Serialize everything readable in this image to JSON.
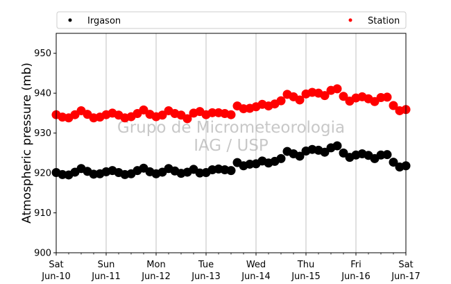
{
  "chart_data": {
    "type": "scatter",
    "ylabel": "Atmospheric pressure (mb)",
    "xlabel": "",
    "ylim": [
      900,
      955
    ],
    "yticks": [
      900,
      910,
      920,
      930,
      940,
      950
    ],
    "xlim": [
      "2017-06-10",
      "2017-06-17"
    ],
    "xticks": [
      {
        "date": "2017-06-10",
        "day": "Sat",
        "label": "Jun-10"
      },
      {
        "date": "2017-06-11",
        "day": "Sun",
        "label": "Jun-11"
      },
      {
        "date": "2017-06-12",
        "day": "Mon",
        "label": "Jun-12"
      },
      {
        "date": "2017-06-13",
        "day": "Tue",
        "label": "Jun-13"
      },
      {
        "date": "2017-06-14",
        "day": "Wed",
        "label": "Jun-14"
      },
      {
        "date": "2017-06-15",
        "day": "Thu",
        "label": "Jun-15"
      },
      {
        "date": "2017-06-16",
        "day": "Fri",
        "label": "Jun-16"
      },
      {
        "date": "2017-06-17",
        "day": "Sat",
        "label": "Jun-17"
      }
    ],
    "grid": "vertical",
    "legend": "top",
    "watermark": [
      "Grupo de Micrometeorologia",
      "IAG / USP"
    ],
    "series": [
      {
        "name": "Irgason",
        "color": "#000000",
        "points": [
          [
            "2017-06-10 00:00",
            920.1
          ],
          [
            "2017-06-10 03:00",
            919.6
          ],
          [
            "2017-06-10 06:00",
            919.5
          ],
          [
            "2017-06-10 09:00",
            920.2
          ],
          [
            "2017-06-10 12:00",
            921.1
          ],
          [
            "2017-06-10 15:00",
            920.4
          ],
          [
            "2017-06-10 18:00",
            919.7
          ],
          [
            "2017-06-10 21:00",
            919.8
          ],
          [
            "2017-06-11 00:00",
            920.3
          ],
          [
            "2017-06-11 03:00",
            920.6
          ],
          [
            "2017-06-11 06:00",
            920.1
          ],
          [
            "2017-06-11 09:00",
            919.6
          ],
          [
            "2017-06-11 12:00",
            919.8
          ],
          [
            "2017-06-11 15:00",
            920.6
          ],
          [
            "2017-06-11 18:00",
            921.2
          ],
          [
            "2017-06-11 21:00",
            920.3
          ],
          [
            "2017-06-12 00:00",
            919.8
          ],
          [
            "2017-06-12 03:00",
            920.2
          ],
          [
            "2017-06-12 06:00",
            921.1
          ],
          [
            "2017-06-12 09:00",
            920.5
          ],
          [
            "2017-06-12 12:00",
            919.9
          ],
          [
            "2017-06-12 15:00",
            920.2
          ],
          [
            "2017-06-12 18:00",
            920.9
          ],
          [
            "2017-06-12 21:00",
            920.0
          ],
          [
            "2017-06-13 00:00",
            920.1
          ],
          [
            "2017-06-13 03:00",
            920.8
          ],
          [
            "2017-06-13 06:00",
            921.0
          ],
          [
            "2017-06-13 09:00",
            920.8
          ],
          [
            "2017-06-13 12:00",
            920.6
          ],
          [
            "2017-06-13 15:00",
            922.6
          ],
          [
            "2017-06-13 18:00",
            921.8
          ],
          [
            "2017-06-13 21:00",
            922.2
          ],
          [
            "2017-06-14 00:00",
            922.3
          ],
          [
            "2017-06-14 03:00",
            923.0
          ],
          [
            "2017-06-14 06:00",
            922.5
          ],
          [
            "2017-06-14 09:00",
            922.9
          ],
          [
            "2017-06-14 12:00",
            923.6
          ],
          [
            "2017-06-14 15:00",
            925.4
          ],
          [
            "2017-06-14 18:00",
            924.8
          ],
          [
            "2017-06-14 21:00",
            924.2
          ],
          [
            "2017-06-15 00:00",
            925.5
          ],
          [
            "2017-06-15 03:00",
            925.9
          ],
          [
            "2017-06-15 06:00",
            925.7
          ],
          [
            "2017-06-15 09:00",
            925.2
          ],
          [
            "2017-06-15 12:00",
            926.3
          ],
          [
            "2017-06-15 15:00",
            926.8
          ],
          [
            "2017-06-15 18:00",
            925.0
          ],
          [
            "2017-06-15 21:00",
            923.9
          ],
          [
            "2017-06-16 00:00",
            924.5
          ],
          [
            "2017-06-16 03:00",
            924.8
          ],
          [
            "2017-06-16 06:00",
            924.4
          ],
          [
            "2017-06-16 09:00",
            923.6
          ],
          [
            "2017-06-16 12:00",
            924.5
          ],
          [
            "2017-06-16 15:00",
            924.6
          ],
          [
            "2017-06-16 18:00",
            922.7
          ],
          [
            "2017-06-16 21:00",
            921.5
          ],
          [
            "2017-06-17 00:00",
            921.8
          ]
        ]
      },
      {
        "name": "Station",
        "color": "#ff0000",
        "points": [
          [
            "2017-06-10 00:00",
            934.6
          ],
          [
            "2017-06-10 03:00",
            934.0
          ],
          [
            "2017-06-10 06:00",
            933.8
          ],
          [
            "2017-06-10 09:00",
            934.6
          ],
          [
            "2017-06-10 12:00",
            935.6
          ],
          [
            "2017-06-10 15:00",
            934.7
          ],
          [
            "2017-06-10 18:00",
            933.8
          ],
          [
            "2017-06-10 21:00",
            934.0
          ],
          [
            "2017-06-11 00:00",
            934.6
          ],
          [
            "2017-06-11 03:00",
            935.0
          ],
          [
            "2017-06-11 06:00",
            934.5
          ],
          [
            "2017-06-11 09:00",
            933.8
          ],
          [
            "2017-06-11 12:00",
            934.1
          ],
          [
            "2017-06-11 15:00",
            934.9
          ],
          [
            "2017-06-11 18:00",
            935.8
          ],
          [
            "2017-06-11 21:00",
            934.7
          ],
          [
            "2017-06-12 00:00",
            934.1
          ],
          [
            "2017-06-12 03:00",
            934.5
          ],
          [
            "2017-06-12 06:00",
            935.6
          ],
          [
            "2017-06-12 09:00",
            934.9
          ],
          [
            "2017-06-12 12:00",
            934.5
          ],
          [
            "2017-06-12 15:00",
            933.6
          ],
          [
            "2017-06-12 18:00",
            935.0
          ],
          [
            "2017-06-12 21:00",
            935.4
          ],
          [
            "2017-06-13 00:00",
            934.6
          ],
          [
            "2017-06-13 03:00",
            935.1
          ],
          [
            "2017-06-13 06:00",
            935.1
          ],
          [
            "2017-06-13 09:00",
            934.9
          ],
          [
            "2017-06-13 12:00",
            934.6
          ],
          [
            "2017-06-13 15:00",
            936.8
          ],
          [
            "2017-06-13 18:00",
            936.1
          ],
          [
            "2017-06-13 21:00",
            936.2
          ],
          [
            "2017-06-14 00:00",
            936.6
          ],
          [
            "2017-06-14 03:00",
            937.2
          ],
          [
            "2017-06-14 06:00",
            936.8
          ],
          [
            "2017-06-14 09:00",
            937.3
          ],
          [
            "2017-06-14 12:00",
            938.1
          ],
          [
            "2017-06-14 15:00",
            939.7
          ],
          [
            "2017-06-14 18:00",
            939.1
          ],
          [
            "2017-06-14 21:00",
            938.3
          ],
          [
            "2017-06-15 00:00",
            939.8
          ],
          [
            "2017-06-15 03:00",
            940.2
          ],
          [
            "2017-06-15 06:00",
            940.0
          ],
          [
            "2017-06-15 09:00",
            939.4
          ],
          [
            "2017-06-15 12:00",
            940.7
          ],
          [
            "2017-06-15 15:00",
            941.1
          ],
          [
            "2017-06-15 18:00",
            939.2
          ],
          [
            "2017-06-15 21:00",
            938.0
          ],
          [
            "2017-06-16 00:00",
            938.8
          ],
          [
            "2017-06-16 03:00",
            939.1
          ],
          [
            "2017-06-16 06:00",
            938.6
          ],
          [
            "2017-06-16 09:00",
            937.9
          ],
          [
            "2017-06-16 12:00",
            938.9
          ],
          [
            "2017-06-16 15:00",
            939.0
          ],
          [
            "2017-06-16 18:00",
            936.9
          ],
          [
            "2017-06-16 21:00",
            935.6
          ],
          [
            "2017-06-17 00:00",
            935.9
          ]
        ]
      }
    ]
  }
}
